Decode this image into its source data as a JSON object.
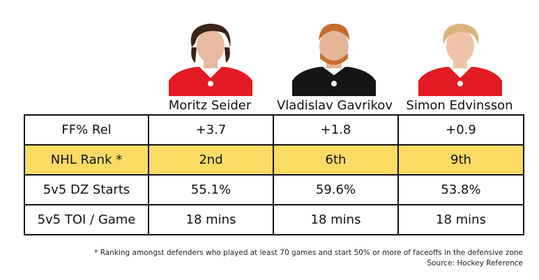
{
  "players": [
    {
      "name": "Moritz Seider",
      "jersey": "#e31b23",
      "hair": "#3a2416",
      "skin": "#e7b9a0"
    },
    {
      "name": "Vladislav Gavrikov",
      "jersey": "#151515",
      "hair": "#c76d2e",
      "skin": "#e6b497"
    },
    {
      "name": "Simon Edvinsson",
      "jersey": "#e31b23",
      "hair": "#d9b37a",
      "skin": "#efc3a8"
    }
  ],
  "rows": [
    {
      "label": "FF% Rel",
      "values": [
        "+3.7",
        "+1.8",
        "+0.9"
      ],
      "highlight": false
    },
    {
      "label": "NHL Rank *",
      "values": [
        "2nd",
        "6th",
        "9th"
      ],
      "highlight": true
    },
    {
      "label": "5v5 DZ Starts",
      "values": [
        "55.1%",
        "59.6%",
        "53.8%"
      ],
      "highlight": false
    },
    {
      "label": "5v5 TOI / Game",
      "values": [
        "18 mins",
        "18 mins",
        "18 mins"
      ],
      "highlight": false
    }
  ],
  "footnote": {
    "note": "* Ranking amongst defenders who played at least 70 games and start 50% or more of faceoffs in the defensive zone",
    "source": "Source: Hockey Reference"
  },
  "colors": {
    "highlight": "#fbdb63",
    "border": "#111111"
  }
}
